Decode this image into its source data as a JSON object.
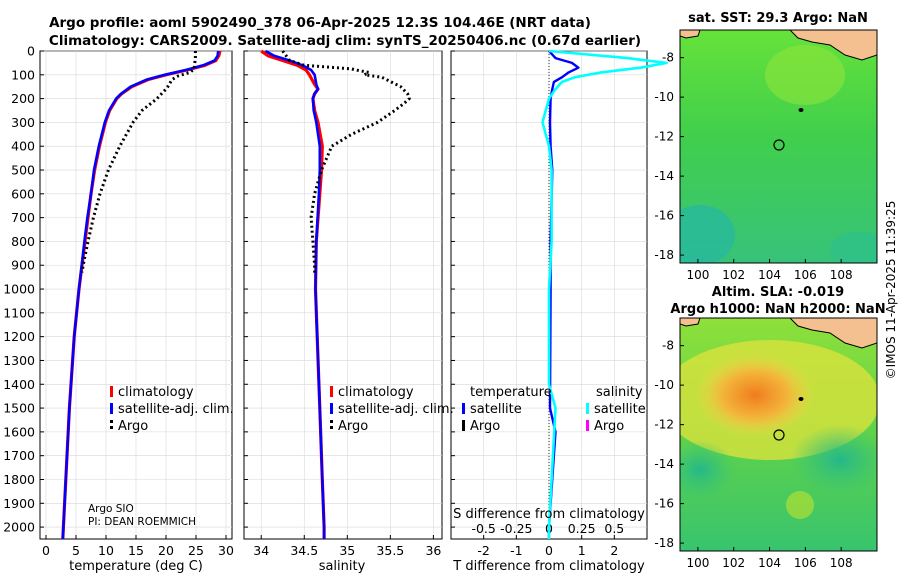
{
  "header": {
    "title_line1": "Argo profile: aoml 5902490_378 06-Apr-2025 12.3S 104.46E (NRT data)",
    "title_line2": "Climatology: CARS2009. Satellite-adj clim: synTS_20250406.nc (0.67d earlier)"
  },
  "credits": {
    "line1": "Argo SIO",
    "line2": "PI: DEAN ROEMMICH",
    "imos": "©IMOS 11-Apr-2025 11:39:25"
  },
  "colors": {
    "climatology": "#ff0000",
    "satellite_adj": "#0000ff",
    "argo": "#000000",
    "diff_temp": "#0000ff",
    "diff_sal": "#00ffff",
    "diff_argo_sal": "#ff00ff",
    "land": "#f5c08f"
  },
  "chart_data": [
    {
      "id": "temperature",
      "type": "line",
      "xlabel": "temperature (deg C)",
      "ylabel": "",
      "xlim": [
        -1,
        31
      ],
      "ylim": [
        0,
        2050
      ],
      "xticks": [
        0,
        5,
        10,
        15,
        20,
        25,
        30
      ],
      "yticks": [
        0,
        100,
        200,
        300,
        400,
        500,
        600,
        700,
        800,
        900,
        1000,
        1100,
        1200,
        1300,
        1400,
        1500,
        1600,
        1700,
        1800,
        1900,
        2000
      ],
      "legend": [
        "climatology",
        "satellite-adj. clim.",
        "Argo"
      ],
      "series": [
        {
          "name": "climatology",
          "depth": [
            0,
            20,
            40,
            60,
            80,
            100,
            120,
            150,
            180,
            200,
            250,
            300,
            400,
            500,
            600,
            700,
            800,
            1000,
            1200,
            1500,
            1800,
            2000,
            2050
          ],
          "values": [
            29.0,
            28.8,
            28.3,
            26.5,
            23.5,
            20.0,
            17.0,
            14.3,
            12.6,
            11.8,
            10.6,
            9.9,
            8.9,
            8.1,
            7.5,
            7.0,
            6.5,
            5.5,
            4.7,
            3.9,
            3.3,
            2.9,
            2.8
          ]
        },
        {
          "name": "satellite-adj. clim.",
          "depth": [
            0,
            20,
            40,
            60,
            80,
            100,
            120,
            150,
            180,
            200,
            250,
            300,
            400,
            500,
            600,
            700,
            800,
            1000,
            1200,
            1500,
            1800,
            2000,
            2050
          ],
          "values": [
            28.7,
            28.6,
            28.1,
            26.2,
            23.3,
            19.8,
            16.8,
            14.1,
            12.5,
            11.7,
            10.5,
            9.8,
            8.8,
            8.0,
            7.5,
            6.9,
            6.4,
            5.5,
            4.7,
            3.9,
            3.3,
            2.9,
            2.8
          ]
        },
        {
          "name": "Argo",
          "depth": [
            0,
            30,
            50,
            75,
            90,
            105,
            120,
            150,
            165,
            200,
            250,
            300,
            400,
            500,
            600,
            700,
            800,
            900,
            930
          ],
          "values": [
            24.9,
            24.9,
            24.8,
            24.7,
            24.0,
            22.0,
            21.0,
            20.3,
            19.8,
            18.5,
            16.0,
            14.5,
            12.3,
            10.4,
            9.0,
            7.9,
            7.0,
            6.2,
            6.0
          ]
        }
      ]
    },
    {
      "id": "salinity",
      "type": "line",
      "xlabel": "salinity",
      "xlim": [
        33.8,
        36.1
      ],
      "ylim": [
        0,
        2050
      ],
      "xticks": [
        34,
        34.5,
        35,
        35.5,
        36
      ],
      "legend": [
        "climatology",
        "satellite-adj. clim.",
        "Argo"
      ],
      "series": [
        {
          "name": "climatology",
          "depth": [
            0,
            20,
            40,
            60,
            80,
            100,
            120,
            140,
            160,
            180,
            200,
            250,
            300,
            400,
            500,
            600,
            800,
            1000,
            1200,
            1500,
            1800,
            2000,
            2050
          ],
          "values": [
            34.0,
            34.08,
            34.25,
            34.42,
            34.52,
            34.56,
            34.59,
            34.62,
            34.66,
            34.62,
            34.6,
            34.62,
            34.66,
            34.71,
            34.7,
            34.68,
            34.64,
            34.63,
            34.65,
            34.68,
            34.71,
            34.73,
            34.73
          ]
        },
        {
          "name": "satellite-adj. clim.",
          "depth": [
            0,
            20,
            40,
            60,
            80,
            100,
            120,
            140,
            160,
            180,
            200,
            250,
            300,
            400,
            500,
            600,
            800,
            1000,
            1200,
            1500,
            1800,
            2000,
            2050
          ],
          "values": [
            34.05,
            34.15,
            34.33,
            34.48,
            34.58,
            34.62,
            34.63,
            34.64,
            34.66,
            34.62,
            34.6,
            34.61,
            34.64,
            34.68,
            34.68,
            34.67,
            34.64,
            34.63,
            34.65,
            34.68,
            34.71,
            34.73,
            34.73
          ]
        },
        {
          "name": "Argo",
          "depth": [
            0,
            40,
            60,
            75,
            80,
            90,
            100,
            110,
            150,
            180,
            200,
            220,
            250,
            300,
            350,
            400,
            500,
            600,
            700,
            800,
            900,
            940
          ],
          "values": [
            34.25,
            34.33,
            34.5,
            35.05,
            35.1,
            35.25,
            35.2,
            35.4,
            35.62,
            35.7,
            35.72,
            35.66,
            35.55,
            35.35,
            35.05,
            34.82,
            34.7,
            34.62,
            34.58,
            34.6,
            34.62,
            34.62
          ]
        }
      ]
    },
    {
      "id": "difference",
      "type": "line",
      "xlabel": "T difference from climatology",
      "top_label": "S difference from climatology",
      "xlim": [
        -3,
        3
      ],
      "ylim": [
        0,
        2050
      ],
      "xticks": [
        -2,
        -1,
        0,
        1,
        2
      ],
      "xticks_top": [
        -0.5,
        -0.25,
        0,
        0.25,
        0.5
      ],
      "legend_temperature_header": "temperature",
      "legend_salinity_header": "salinity",
      "legend_items": [
        "satellite",
        "Argo",
        "satellite",
        "Argo"
      ],
      "series": [
        {
          "name": "temperature satellite",
          "depth": [
            0,
            30,
            50,
            70,
            90,
            110,
            130,
            160,
            200,
            300,
            400,
            500,
            800,
            1000,
            1500,
            1600,
            2000,
            2050
          ],
          "values": [
            0.0,
            0.2,
            0.7,
            0.9,
            0.6,
            0.4,
            0.15,
            0.1,
            0.05,
            0.03,
            0.05,
            0.1,
            0.05,
            0.05,
            0.03,
            0.2,
            0.0,
            0.0
          ]
        },
        {
          "name": "salinity satellite",
          "depth": [
            0,
            30,
            50,
            70,
            90,
            110,
            130,
            160,
            200,
            300,
            400,
            500,
            800,
            1000,
            1400,
            1500,
            2000,
            2050
          ],
          "values": [
            0.0,
            0.6,
            0.9,
            0.7,
            0.4,
            0.2,
            0.1,
            0.05,
            0.0,
            -0.05,
            0.0,
            0.02,
            0.02,
            0.0,
            0.0,
            0.05,
            0.0,
            0.0
          ]
        }
      ]
    }
  ],
  "maps": [
    {
      "id": "sst-map",
      "title": "sat. SST: 29.3  Argo: NaN",
      "xticks": [
        100,
        102,
        104,
        106,
        108
      ],
      "yticks": [
        -8,
        -10,
        -12,
        -14,
        -16,
        -18
      ],
      "lon_range": [
        99,
        110
      ],
      "lat_range": [
        -18.4,
        -6.6
      ],
      "profile_lon": 104.46,
      "profile_lat": -12.3
    },
    {
      "id": "sla-map",
      "title_line1": "Altim. SLA: -0.019",
      "title_line2": "Argo h1000: NaN  h2000: NaN",
      "xticks": [
        100,
        102,
        104,
        106,
        108
      ],
      "yticks": [
        -8,
        -10,
        -12,
        -14,
        -16,
        -18
      ],
      "lon_range": [
        99,
        110
      ],
      "lat_range": [
        -18.4,
        -6.6
      ],
      "profile_lon": 104.46,
      "profile_lat": -12.3
    }
  ]
}
